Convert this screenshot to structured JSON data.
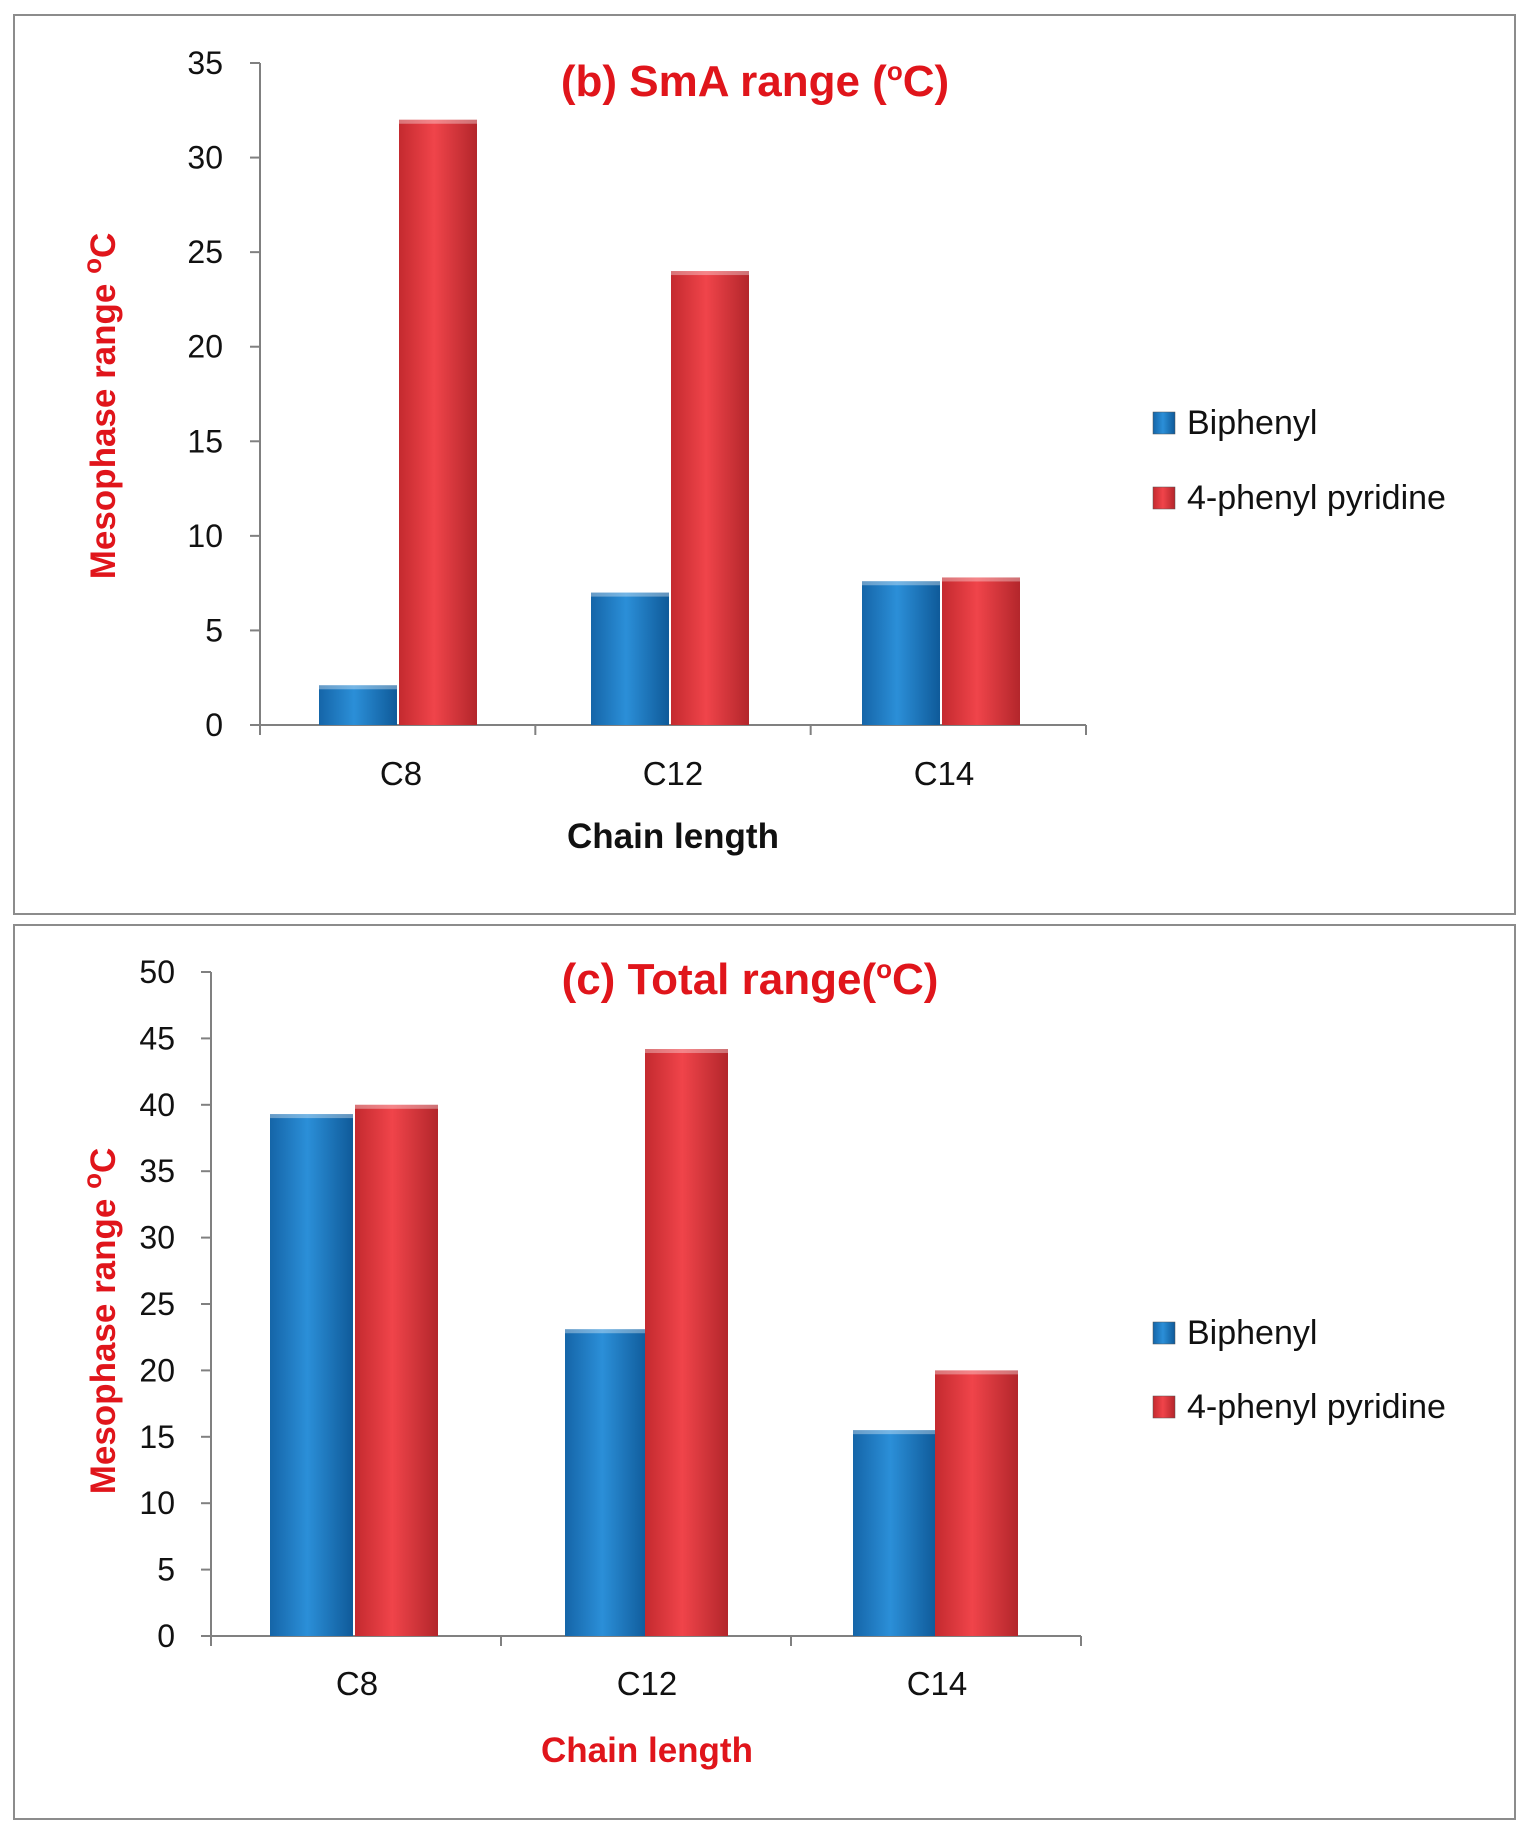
{
  "chart_data": [
    {
      "type": "bar",
      "id": "b",
      "title": "(b) SmA range (",
      "title_sup": "o",
      "title_end": "C)",
      "xlabel": "Chain length",
      "xlabel_color": "#111111",
      "ylabel": "Mesophase range ",
      "ylabel_sup": "o",
      "ylabel_end": "C",
      "ylim": [
        0,
        35
      ],
      "ytick_step": 5,
      "yticks": [
        "0",
        "5",
        "10",
        "15",
        "20",
        "25",
        "30",
        "35"
      ],
      "categories": [
        "C8",
        "C12",
        "C14"
      ],
      "series": [
        {
          "name": "Biphenyl",
          "color": "#1f80c8",
          "values": [
            2.1,
            7,
            7.6
          ]
        },
        {
          "name": "4-phenyl pyridine",
          "color": "#e8383d",
          "values": [
            32,
            24,
            7.8
          ]
        }
      ],
      "legend": "right"
    },
    {
      "type": "bar",
      "id": "c",
      "title": "(c) Total range(",
      "title_sup": "o",
      "title_end": "C)",
      "xlabel": "Chain length",
      "xlabel_color": "#e0151b",
      "ylabel": "Mesophase range ",
      "ylabel_sup": "o",
      "ylabel_end": "C",
      "ylim": [
        0,
        50
      ],
      "ytick_step": 5,
      "yticks": [
        "0",
        "5",
        "10",
        "15",
        "20",
        "25",
        "30",
        "35",
        "40",
        "45",
        "50"
      ],
      "categories": [
        "C8",
        "C12",
        "C14"
      ],
      "series": [
        {
          "name": "Biphenyl",
          "color": "#1f80c8",
          "values": [
            39.3,
            23.1,
            15.5
          ]
        },
        {
          "name": "4-phenyl pyridine",
          "color": "#e8383d",
          "values": [
            40,
            44.2,
            20
          ]
        }
      ],
      "legend": "right"
    }
  ]
}
